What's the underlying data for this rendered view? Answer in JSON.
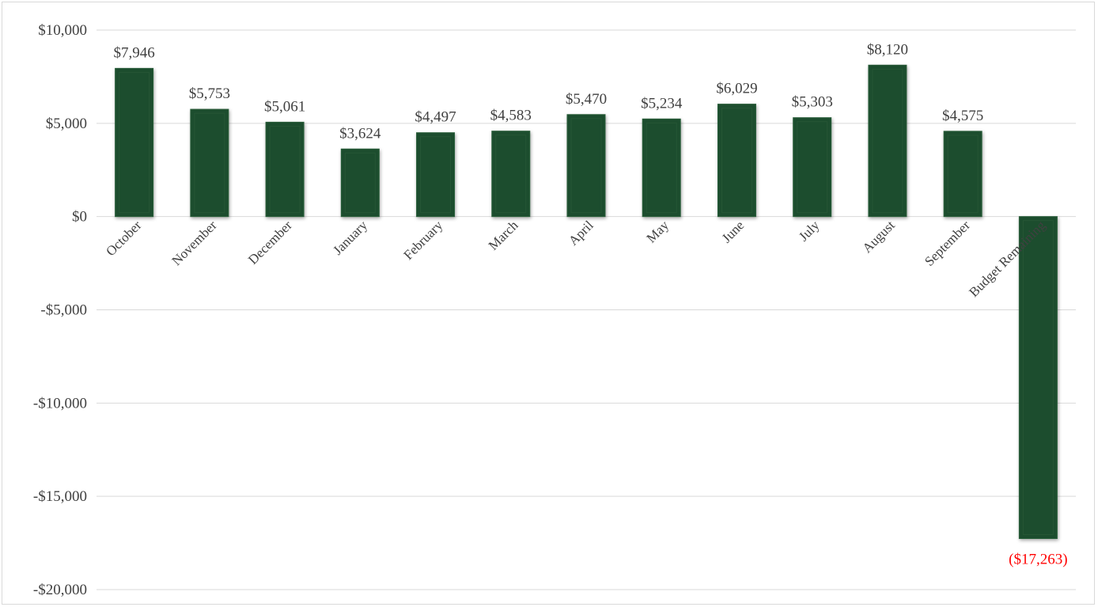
{
  "chart_data": {
    "type": "bar",
    "categories": [
      "October",
      "November",
      "December",
      "January",
      "February",
      "March",
      "April",
      "May",
      "June",
      "July",
      "August",
      "September",
      "Budget Remaining"
    ],
    "values": [
      7946,
      5753,
      5061,
      3624,
      4497,
      4583,
      5470,
      5234,
      6029,
      5303,
      8120,
      4575,
      -17263
    ],
    "data_labels": [
      "$7,946",
      "$5,753",
      "$5,061",
      "$3,624",
      "$4,497",
      "$4,583",
      "$5,470",
      "$5,234",
      "$6,029",
      "$5,303",
      "$8,120",
      "$4,575",
      "($17,263)"
    ],
    "ylim": [
      -20000,
      10000
    ],
    "yticks": [
      10000,
      5000,
      0,
      -5000,
      -10000,
      -15000,
      -20000
    ],
    "ytick_labels": [
      "$10,000",
      "$5,000",
      "$0",
      "-$5,000",
      "-$10,000",
      "-$15,000",
      "-$20,000"
    ],
    "title": "",
    "xlabel": "",
    "ylabel": "",
    "grid": true,
    "legend": "none",
    "colors": {
      "bar": "#1f4e2e",
      "bar_edge": "#2a5e3a",
      "negative_label": "#ff0000",
      "gridline": "#d9d9d9",
      "text": "#404040"
    }
  }
}
